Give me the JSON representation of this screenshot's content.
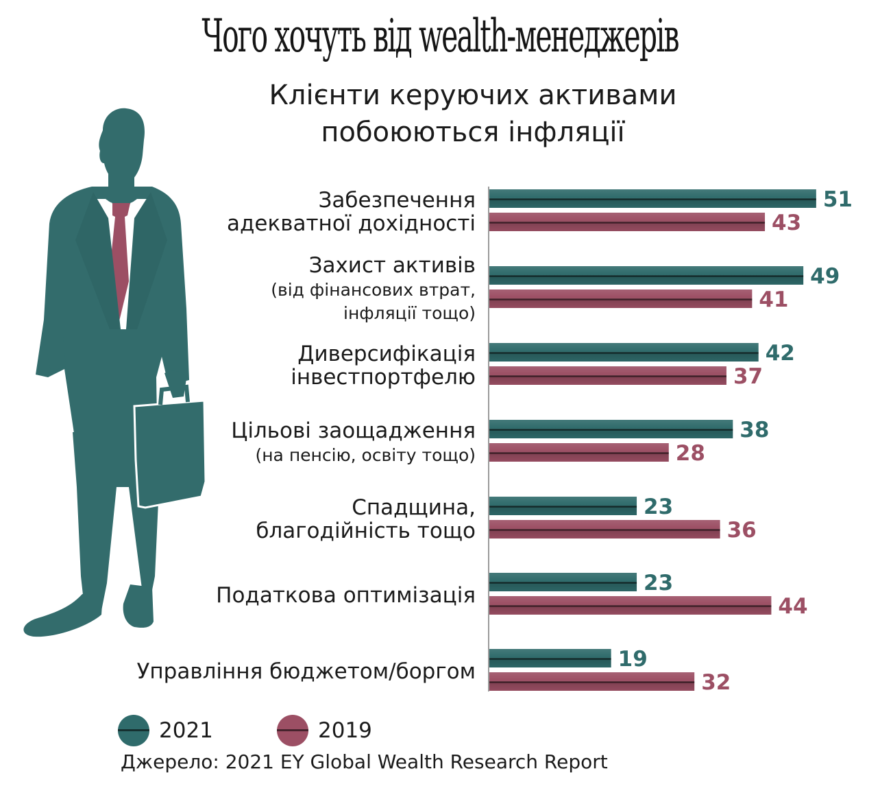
{
  "header": {
    "title": "Чого хочуть від wealth-менеджерів",
    "subtitle_line1": "Клієнти керуючих активами",
    "subtitle_line2": "побоюються інфляції"
  },
  "colors": {
    "series_2021": "#2f6b6b",
    "series_2019": "#9c4f64",
    "figure": "#336c6c",
    "tie": "#9c4f64",
    "axis": "#9a9a9a"
  },
  "legend": {
    "item_2021": "2021",
    "item_2019": "2019"
  },
  "source": "Джерело: 2021 EY Global Wealth Research Report",
  "chart_data": {
    "type": "bar",
    "orientation": "horizontal",
    "categories": [
      [
        "Забезпечення",
        "адекватної дохідності"
      ],
      [
        "Захист активів",
        "(від фінансових втрат,",
        "інфляції тощо)"
      ],
      [
        "Диверсифікація",
        "інвестпортфелю"
      ],
      [
        "Цільові заощадження",
        "(на пенсію, освіту тощо)"
      ],
      [
        "Спадщина,",
        "благодійність тощо"
      ],
      [
        "Податкова оптимізація"
      ],
      [
        "Управління бюджетом/боргом"
      ]
    ],
    "series": [
      {
        "name": "2021",
        "values": [
          51,
          49,
          42,
          38,
          23,
          23,
          19
        ]
      },
      {
        "name": "2019",
        "values": [
          43,
          41,
          37,
          28,
          36,
          44,
          32
        ]
      }
    ],
    "data_labels": true,
    "legend_position": "bottom-left"
  }
}
